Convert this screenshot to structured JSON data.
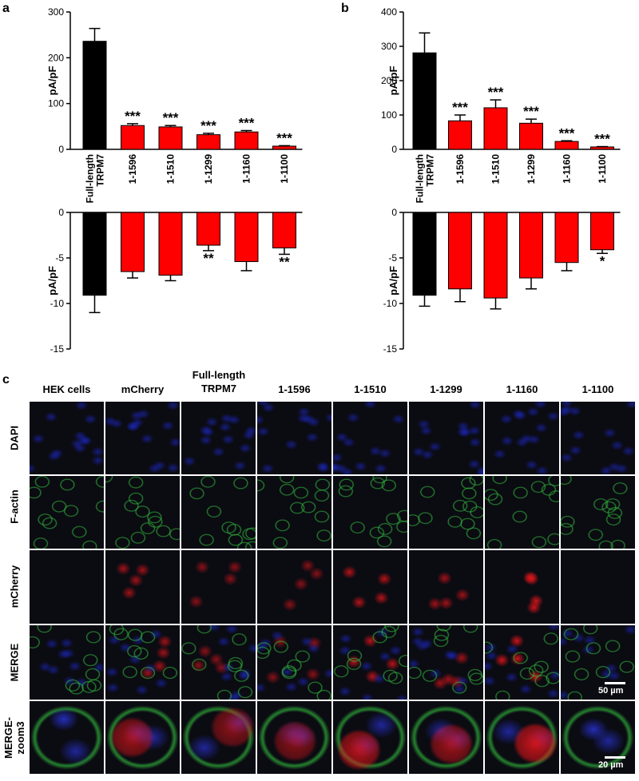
{
  "panel_labels": {
    "a": "a",
    "b": "b",
    "c": "c"
  },
  "chart_data": [
    {
      "type": "bar",
      "panel": "a",
      "part": "top",
      "categories": [
        "Full-length TRPM7",
        "1-1596",
        "1-1510",
        "1-1299",
        "1-1160",
        "1-1100"
      ],
      "ylabel": "pA/pF",
      "ylim": [
        0,
        300
      ],
      "yticks": [
        0,
        100,
        200,
        300
      ],
      "values": [
        236,
        52,
        49,
        32,
        38,
        7
      ],
      "errors": [
        28,
        4,
        3,
        3,
        3,
        1
      ],
      "colors": [
        "#000000",
        "#ff0000",
        "#ff0000",
        "#ff0000",
        "#ff0000",
        "#ff0000"
      ],
      "significance": [
        "",
        "***",
        "***",
        "***",
        "***",
        "***"
      ]
    },
    {
      "type": "bar",
      "panel": "a",
      "part": "bottom",
      "categories": [
        "Full-length TRPM7",
        "1-1596",
        "1-1510",
        "1-1299",
        "1-1160",
        "1-1100"
      ],
      "ylabel": "pA/pF",
      "ylim": [
        -15,
        0
      ],
      "yticks": [
        0,
        -5,
        -10,
        -15
      ],
      "values": [
        -9.1,
        -6.5,
        -6.9,
        -3.6,
        -5.4,
        -3.9
      ],
      "errors": [
        1.9,
        0.7,
        0.6,
        0.6,
        1.0,
        0.7
      ],
      "colors": [
        "#000000",
        "#ff0000",
        "#ff0000",
        "#ff0000",
        "#ff0000",
        "#ff0000"
      ],
      "significance": [
        "",
        "",
        "",
        "**",
        "",
        "**"
      ]
    },
    {
      "type": "bar",
      "panel": "b",
      "part": "top",
      "categories": [
        "Full-length TRPM7",
        "1-1596",
        "1-1510",
        "1-1299",
        "1-1160",
        "1-1100"
      ],
      "ylabel": "pA/pF",
      "ylim": [
        0,
        400
      ],
      "yticks": [
        0,
        100,
        200,
        300,
        400
      ],
      "values": [
        281,
        83,
        121,
        76,
        23,
        7
      ],
      "errors": [
        58,
        17,
        23,
        12,
        2,
        1
      ],
      "colors": [
        "#000000",
        "#ff0000",
        "#ff0000",
        "#ff0000",
        "#ff0000",
        "#ff0000"
      ],
      "significance": [
        "",
        "***",
        "***",
        "***",
        "***",
        "***"
      ]
    },
    {
      "type": "bar",
      "panel": "b",
      "part": "bottom",
      "categories": [
        "Full-length TRPM7",
        "1-1596",
        "1-1510",
        "1-1299",
        "1-1160",
        "1-1100"
      ],
      "ylabel": "pA/pF",
      "ylim": [
        -15,
        0
      ],
      "yticks": [
        0,
        -5,
        -10,
        -15
      ],
      "values": [
        -9.1,
        -8.4,
        -9.4,
        -7.2,
        -5.5,
        -4.1
      ],
      "errors": [
        1.2,
        1.4,
        1.2,
        1.2,
        0.9,
        0.4
      ],
      "colors": [
        "#000000",
        "#ff0000",
        "#ff0000",
        "#ff0000",
        "#ff0000",
        "#ff0000"
      ],
      "significance": [
        "",
        "",
        "",
        "",
        "",
        "*"
      ]
    }
  ],
  "microscopy": {
    "columns": [
      "HEK cells",
      "mCherry",
      "Full-length TRPM7",
      "1-1596",
      "1-1510",
      "1-1299",
      "1-1160",
      "1-1100"
    ],
    "rows": [
      "DAPI",
      "F-actin",
      "mCherry",
      "MERGE",
      "MERGE-zoom3"
    ],
    "scalebars": {
      "merge": "50 µm",
      "zoom": "20 µm"
    },
    "channel_colors": {
      "DAPI": "#1e2bd6",
      "F-actin": "#2fb33a",
      "mCherry": "#e0151a"
    },
    "mcherry_intensity": [
      0,
      0.7,
      0.6,
      0.6,
      0.8,
      0.7,
      0.9,
      0
    ],
    "cell_background": "#0b0b12"
  }
}
